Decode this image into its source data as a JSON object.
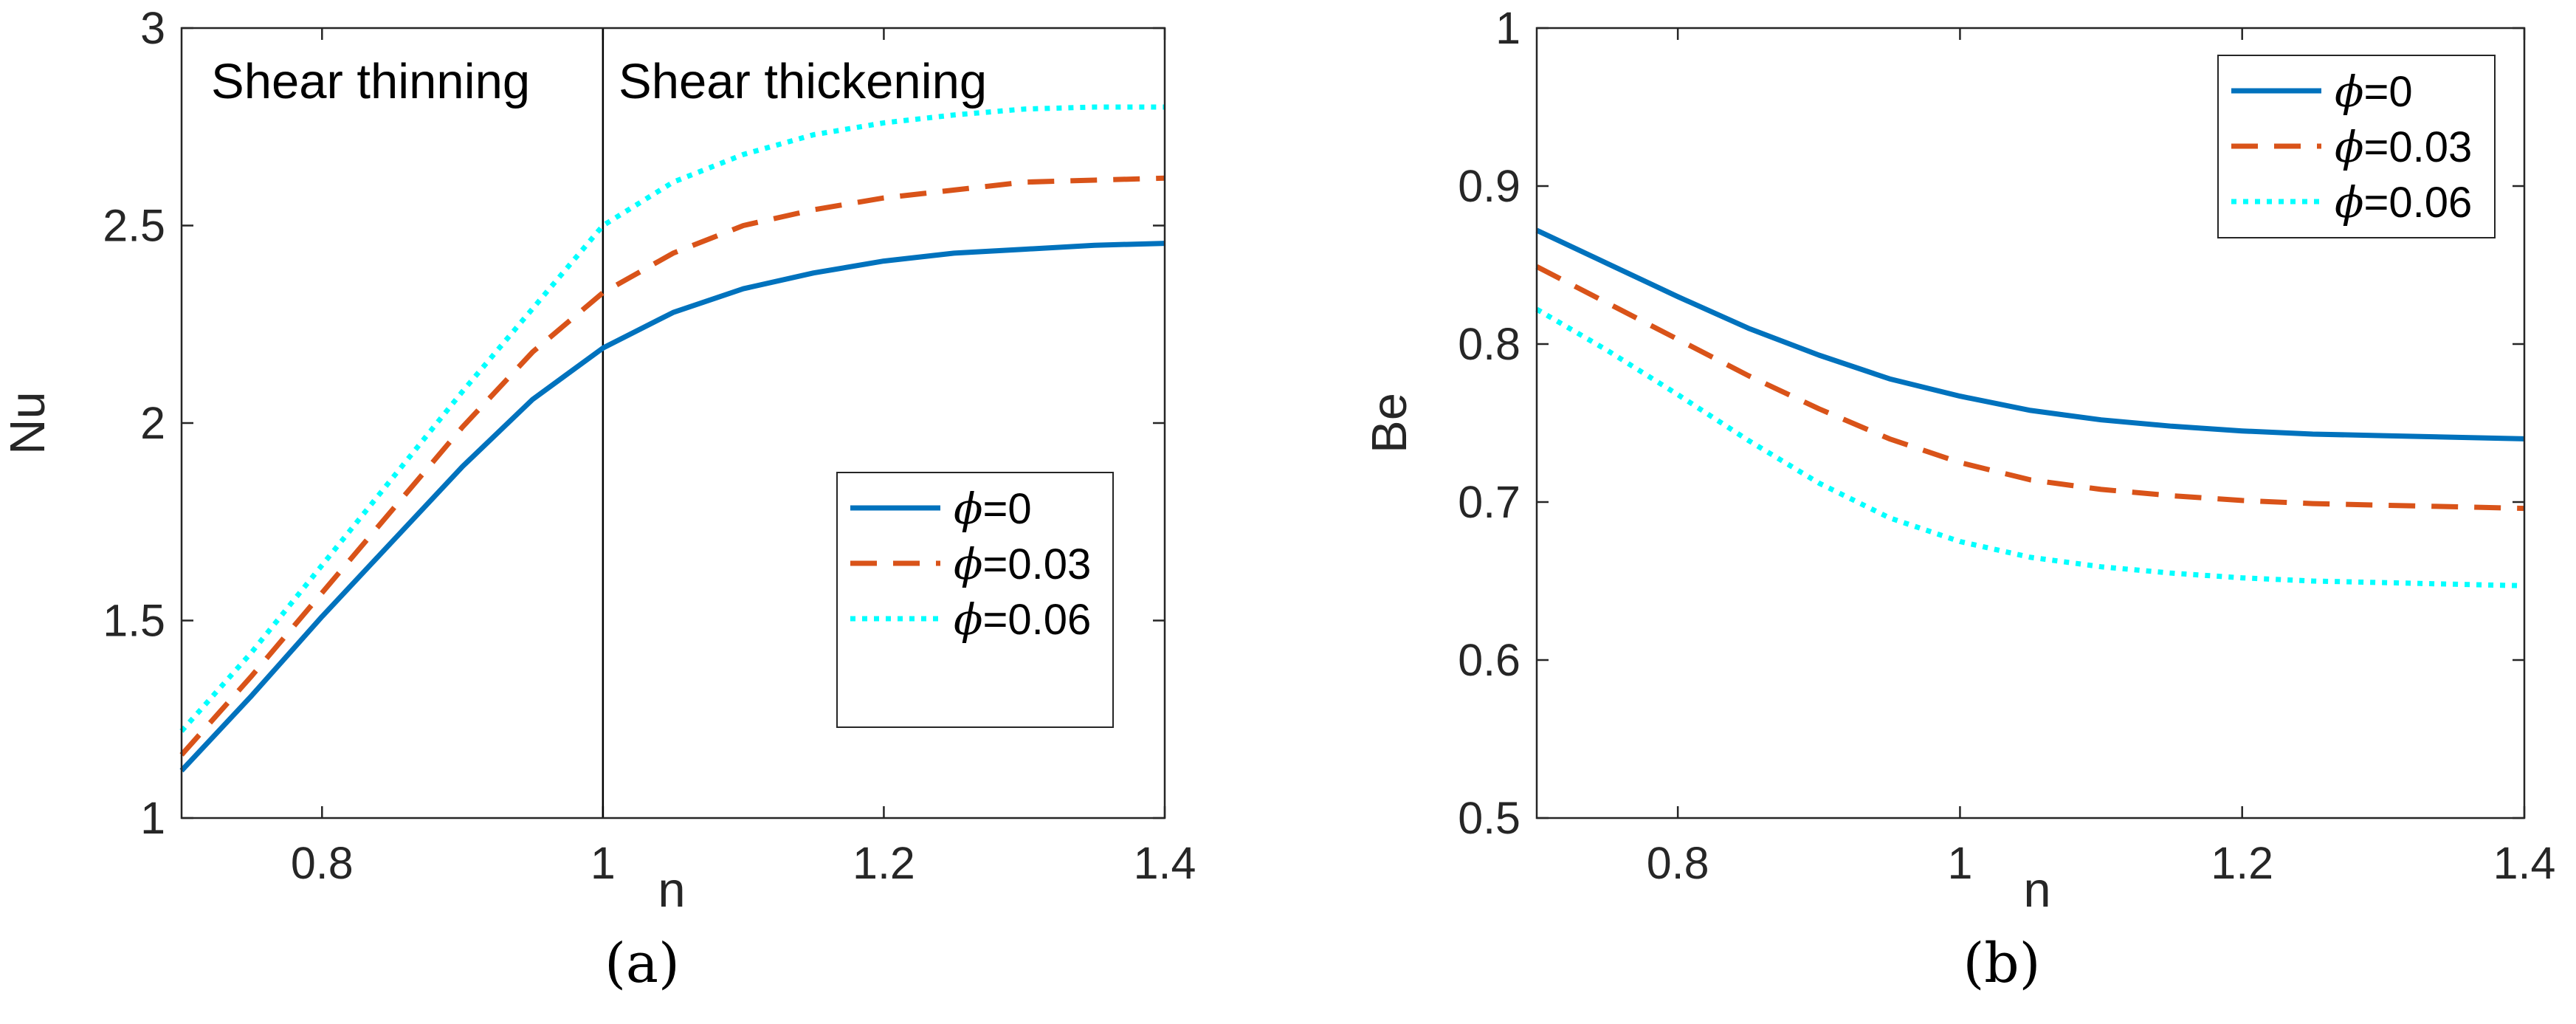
{
  "chart_data": [
    {
      "type": "line",
      "panel_label": "(a)",
      "xlabel": "n",
      "ylabel": "Nu",
      "xlim": [
        0.7,
        1.4
      ],
      "ylim": [
        1,
        3
      ],
      "xticks": [
        0.8,
        1,
        1.2,
        1.4
      ],
      "xtick_labels": [
        "0.8",
        "1",
        "1.2",
        "1.4"
      ],
      "yticks": [
        1,
        1.5,
        2,
        2.5,
        3
      ],
      "ytick_labels": [
        "1",
        "1.5",
        "2",
        "2.5",
        "3"
      ],
      "vline_x": 1,
      "annotations": [
        "Shear thinning",
        "Shear thickening"
      ],
      "legend_position": "lower-right",
      "x": [
        0.7,
        0.75,
        0.8,
        0.85,
        0.9,
        0.95,
        1.0,
        1.05,
        1.1,
        1.15,
        1.2,
        1.25,
        1.3,
        1.35,
        1.4
      ],
      "series": [
        {
          "name": "=0",
          "symbol": "ϕ",
          "color": "#0072BD",
          "style": "solid",
          "values": [
            1.12,
            1.31,
            1.51,
            1.7,
            1.89,
            2.06,
            2.19,
            2.28,
            2.34,
            2.38,
            2.41,
            2.43,
            2.44,
            2.45,
            2.455
          ]
        },
        {
          "name": "=0.03",
          "symbol": "ϕ",
          "color": "#D95319",
          "style": "dashed",
          "values": [
            1.16,
            1.36,
            1.57,
            1.78,
            1.99,
            2.18,
            2.33,
            2.43,
            2.5,
            2.54,
            2.57,
            2.59,
            2.61,
            2.615,
            2.62
          ]
        },
        {
          "name": "=0.06",
          "symbol": "ϕ",
          "color": "#00FFFF",
          "style": "dotted",
          "values": [
            1.22,
            1.42,
            1.64,
            1.86,
            2.08,
            2.29,
            2.5,
            2.61,
            2.68,
            2.73,
            2.76,
            2.78,
            2.795,
            2.8,
            2.8
          ]
        }
      ]
    },
    {
      "type": "line",
      "panel_label": "(b)",
      "xlabel": "n",
      "ylabel": "Be",
      "xlim": [
        0.7,
        1.4
      ],
      "ylim": [
        0.5,
        1
      ],
      "xticks": [
        0.8,
        1,
        1.2,
        1.4
      ],
      "xtick_labels": [
        "0.8",
        "1",
        "1.2",
        "1.4"
      ],
      "yticks": [
        0.5,
        0.6,
        0.7,
        0.8,
        0.9,
        1
      ],
      "ytick_labels": [
        "0.5",
        "0.6",
        "0.7",
        "0.8",
        "0.9",
        "1"
      ],
      "legend_position": "upper-right",
      "x": [
        0.7,
        0.75,
        0.8,
        0.85,
        0.9,
        0.95,
        1.0,
        1.05,
        1.1,
        1.15,
        1.2,
        1.25,
        1.3,
        1.35,
        1.4
      ],
      "series": [
        {
          "name": "=0",
          "symbol": "ϕ",
          "color": "#0072BD",
          "style": "solid",
          "values": [
            0.872,
            0.851,
            0.83,
            0.81,
            0.793,
            0.778,
            0.767,
            0.758,
            0.752,
            0.748,
            0.745,
            0.743,
            0.742,
            0.741,
            0.74
          ]
        },
        {
          "name": "=0.03",
          "symbol": "ϕ",
          "color": "#D95319",
          "style": "dashed",
          "values": [
            0.849,
            0.826,
            0.803,
            0.78,
            0.759,
            0.74,
            0.725,
            0.714,
            0.708,
            0.704,
            0.701,
            0.699,
            0.698,
            0.697,
            0.696
          ]
        },
        {
          "name": "=0.06",
          "symbol": "ϕ",
          "color": "#00FFFF",
          "style": "dotted",
          "values": [
            0.822,
            0.796,
            0.768,
            0.739,
            0.712,
            0.69,
            0.675,
            0.665,
            0.659,
            0.655,
            0.652,
            0.65,
            0.649,
            0.648,
            0.647
          ]
        }
      ]
    }
  ]
}
